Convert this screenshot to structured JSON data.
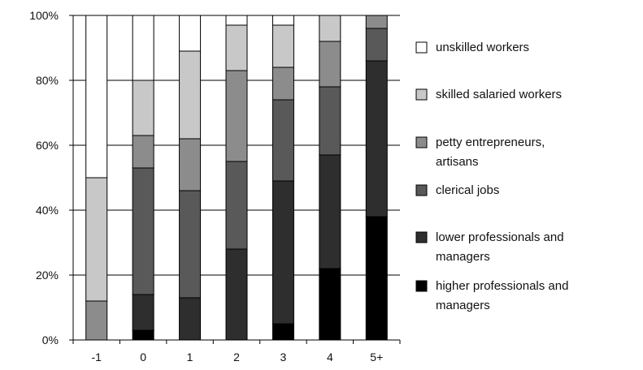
{
  "chart_data": {
    "type": "bar",
    "stacked": true,
    "title": "",
    "xlabel": "",
    "ylabel": "",
    "categories": [
      "-1",
      "0",
      "1",
      "2",
      "3",
      "4",
      "5+"
    ],
    "ylim": [
      0,
      100
    ],
    "yticks": [
      "0%",
      "20%",
      "40%",
      "60%",
      "80%",
      "100%"
    ],
    "grid": true,
    "legend_position": "right",
    "series": [
      {
        "name": "higher professionals and managers",
        "color": "#000000",
        "values": [
          0,
          3,
          0,
          0,
          5,
          22,
          38
        ]
      },
      {
        "name": "lower professionals and managers",
        "color": "#2e2e2e",
        "values": [
          0,
          11,
          13,
          28,
          44,
          35,
          48
        ]
      },
      {
        "name": "clerical jobs",
        "color": "#595959",
        "values": [
          0,
          39,
          33,
          27,
          25,
          21,
          10
        ]
      },
      {
        "name": "petty entrepreneurs, artisans",
        "color": "#8c8c8c",
        "values": [
          12,
          10,
          16,
          28,
          10,
          14,
          4
        ]
      },
      {
        "name": "skilled salaried workers",
        "color": "#c8c8c8",
        "values": [
          38,
          17,
          27,
          14,
          13,
          8,
          0
        ]
      },
      {
        "name": "unskilled workers",
        "color": "#ffffff",
        "values": [
          50,
          20,
          11,
          3,
          3,
          0,
          0
        ]
      }
    ],
    "legend_order": [
      5,
      4,
      3,
      2,
      1,
      0
    ]
  }
}
